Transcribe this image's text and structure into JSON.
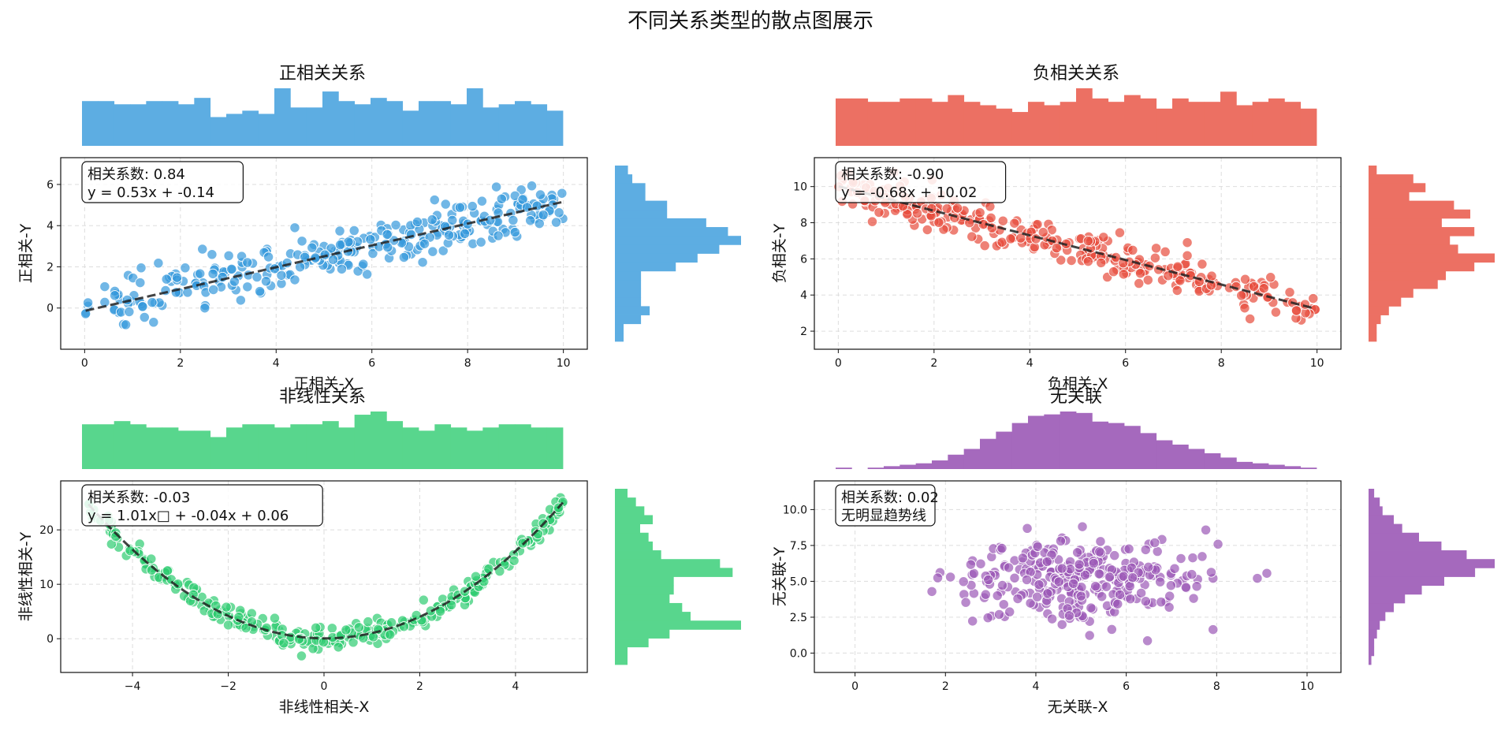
{
  "figure": {
    "title": "不同关系类型的散点图展示"
  },
  "chart_data": [
    {
      "type": "scatter",
      "title": "正相关关系",
      "xlabel": "正相关-X",
      "ylabel": "正相关-Y",
      "xlim": [
        -0.5,
        10.5
      ],
      "ylim": [
        -2,
        7.3
      ],
      "xticks": [
        0,
        2,
        4,
        6,
        8,
        10
      ],
      "yticks": [
        0,
        2,
        4,
        6
      ],
      "grid": true,
      "colors": {
        "points": "#3498db",
        "hist": "#5dade2",
        "trend": "#222222"
      },
      "annotation": [
        "相关系数: 0.84",
        "y = 0.53x + -0.14"
      ],
      "trend": {
        "kind": "linear",
        "coef": [
          0.53,
          -0.14
        ]
      },
      "x_hist_counts": [
        14,
        14,
        13,
        13,
        14,
        14,
        13,
        15,
        9,
        10,
        11,
        10,
        18,
        12,
        12,
        17,
        14,
        13,
        15,
        14,
        11,
        14,
        14,
        13,
        18,
        12,
        13,
        14,
        13,
        11
      ],
      "y_hist": {
        "range": [
          -1.5,
          6.9
        ],
        "counts": [
          2,
          2,
          6,
          8,
          6,
          6,
          6,
          6,
          14,
          19,
          24,
          29,
          26,
          21,
          12,
          12,
          7,
          7,
          4,
          3
        ]
      },
      "points": []
    },
    {
      "type": "scatter",
      "title": "负相关关系",
      "xlabel": "负相关-X",
      "ylabel": "负相关-Y",
      "xlim": [
        -0.5,
        10.5
      ],
      "ylim": [
        1,
        11.6
      ],
      "xticks": [
        0,
        2,
        4,
        6,
        8,
        10
      ],
      "yticks": [
        2,
        4,
        6,
        8,
        10
      ],
      "grid": true,
      "colors": {
        "points": "#e74c3c",
        "hist": "#ec7063",
        "trend": "#222222"
      },
      "annotation": [
        "相关系数: -0.90",
        "y = -0.68x + 10.02"
      ],
      "trend": {
        "kind": "linear",
        "coef": [
          -0.68,
          10.02
        ]
      },
      "x_hist_counts": [
        14,
        14,
        13,
        13,
        14,
        14,
        13,
        15,
        13,
        12,
        11,
        10,
        13,
        12,
        13,
        17,
        14,
        13,
        15,
        14,
        11,
        14,
        13,
        13,
        16,
        12,
        13,
        14,
        13,
        11
      ],
      "y_hist": {
        "range": [
          1.5,
          10.8
        ],
        "counts": [
          2,
          2,
          3,
          5,
          8,
          11,
          17,
          19,
          26,
          31,
          22,
          20,
          26,
          18,
          25,
          21,
          10,
          14,
          11,
          2
        ]
      },
      "points": []
    },
    {
      "type": "scatter",
      "title": "非线性关系",
      "xlabel": "非线性相关-X",
      "ylabel": "非线性相关-Y",
      "xlim": [
        -5.5,
        5.5
      ],
      "ylim": [
        -6.2,
        29
      ],
      "xticks": [
        -4,
        -2,
        0,
        2,
        4
      ],
      "yticks": [
        0,
        10,
        20
      ],
      "grid": true,
      "colors": {
        "points": "#2ecc71",
        "hist": "#58d68d",
        "trend": "#222222"
      },
      "annotation": [
        "相关系数: -0.03",
        "y = 1.01x□ + -0.04x + 0.06"
      ],
      "trend": {
        "kind": "quadratic",
        "coef": [
          1.01,
          -0.04,
          0.06
        ]
      },
      "x_hist_counts": [
        14,
        14,
        15,
        14,
        13,
        13,
        12,
        12,
        10,
        13,
        14,
        14,
        13,
        14,
        14,
        15,
        13,
        17,
        18,
        15,
        13,
        12,
        14,
        13,
        12,
        13,
        14,
        14,
        13,
        13
      ],
      "y_hist": {
        "range": [
          -4.7,
          28
        ],
        "counts": [
          3,
          3,
          8,
          13,
          30,
          18,
          16,
          13,
          14,
          14,
          28,
          25,
          11,
          9,
          8,
          6,
          9,
          7,
          5,
          3
        ]
      },
      "points": []
    },
    {
      "type": "scatter",
      "title": "无关联",
      "xlabel": "无关联-X",
      "ylabel": "无关联-Y",
      "xlim": [
        -0.9,
        10.75
      ],
      "ylim": [
        -1.35,
        12
      ],
      "xticks": [
        0,
        2,
        4,
        6,
        8,
        10
      ],
      "yticks": [
        0.0,
        2.5,
        5.0,
        7.5,
        10.0
      ],
      "grid": true,
      "colors": {
        "points": "#9b59b6",
        "hist": "#a569bd",
        "trend": "#222222"
      },
      "annotation": [
        "相关系数: 0.02",
        "无明显趋势线"
      ],
      "trend": null,
      "x_hist_counts": [
        1,
        0,
        1,
        2,
        3,
        4,
        6,
        10,
        14,
        21,
        26,
        32,
        37,
        38,
        40,
        39,
        33,
        32,
        30,
        25,
        20,
        17,
        14,
        11,
        8,
        5,
        4,
        3,
        2,
        1
      ],
      "y_hist": {
        "range": [
          -1.2,
          11.4
        ],
        "counts": [
          1,
          2,
          2,
          3,
          4,
          6,
          9,
          13,
          19,
          27,
          38,
          45,
          35,
          26,
          18,
          12,
          9,
          5,
          4,
          2
        ]
      },
      "points": []
    }
  ]
}
